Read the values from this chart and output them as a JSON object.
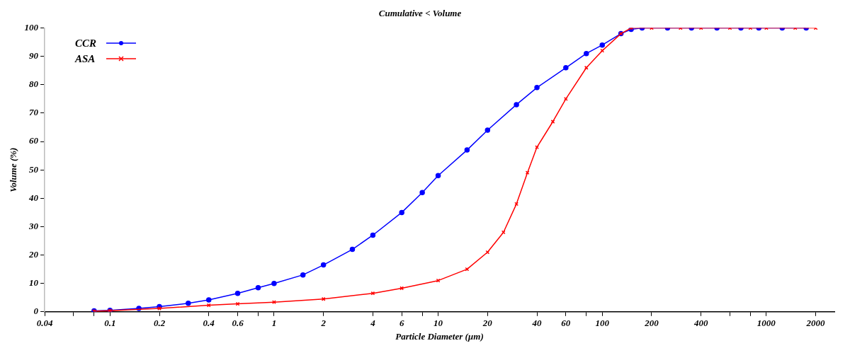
{
  "chart_data": {
    "type": "line",
    "title": "Cumulative < Volume",
    "xlabel": "Particle Diameter (µm)",
    "ylabel": "Volume (%)",
    "log": "x",
    "grid": false,
    "legend": "top left",
    "line_style": "solid",
    "xlim": [
      0.04,
      2600
    ],
    "ylim": [
      0,
      100
    ],
    "xticks": [
      0.04,
      {
        "value": 0.06,
        "label": null
      },
      {
        "value": 0.08,
        "label": null
      },
      0.1,
      0.2,
      0.4,
      0.6,
      {
        "value": 0.8,
        "label": null
      },
      1,
      2,
      4,
      6,
      {
        "value": 8,
        "label": null
      },
      10,
      20,
      40,
      60,
      {
        "value": 80,
        "label": null
      },
      100,
      200,
      400,
      {
        "value": 600,
        "label": null
      },
      {
        "value": 800,
        "label": null
      },
      1000,
      2000
    ],
    "yticks": [
      0,
      10,
      20,
      30,
      40,
      50,
      60,
      70,
      80,
      90,
      100
    ],
    "series": [
      {
        "name": "CCR",
        "color": "#0000ff",
        "marker": "circle",
        "x": [
          0.08,
          0.1,
          0.15,
          0.2,
          0.3,
          0.4,
          0.6,
          0.8,
          1,
          1.5,
          2,
          3,
          4,
          6,
          8,
          10,
          15,
          20,
          30,
          40,
          60,
          80,
          100,
          130,
          150,
          175,
          250,
          350,
          500,
          700,
          900,
          1250,
          1750
        ],
        "values": [
          0.3,
          0.5,
          1.2,
          1.8,
          3,
          4.2,
          6.5,
          8.5,
          10,
          13,
          16.5,
          22,
          27,
          35,
          42,
          48,
          57,
          64,
          73,
          79,
          86,
          91,
          94,
          98,
          99.5,
          100,
          100,
          100,
          100,
          100,
          100,
          100,
          100
        ]
      },
      {
        "name": "ASA",
        "color": "#ff0000",
        "marker": "cross",
        "x": [
          0.08,
          0.1,
          0.2,
          0.4,
          0.6,
          1,
          2,
          4,
          6,
          10,
          15,
          20,
          25,
          30,
          35,
          40,
          50,
          60,
          80,
          100,
          130,
          150,
          200,
          300,
          400,
          600,
          800,
          1000,
          1500,
          2000
        ],
        "values": [
          0.2,
          0.4,
          1.2,
          2.3,
          2.8,
          3.4,
          4.5,
          6.5,
          8.3,
          11,
          15,
          21,
          28,
          38,
          49,
          58,
          67,
          75,
          86,
          92,
          98,
          100,
          100,
          100,
          100,
          100,
          100,
          100,
          100,
          100
        ]
      }
    ]
  }
}
